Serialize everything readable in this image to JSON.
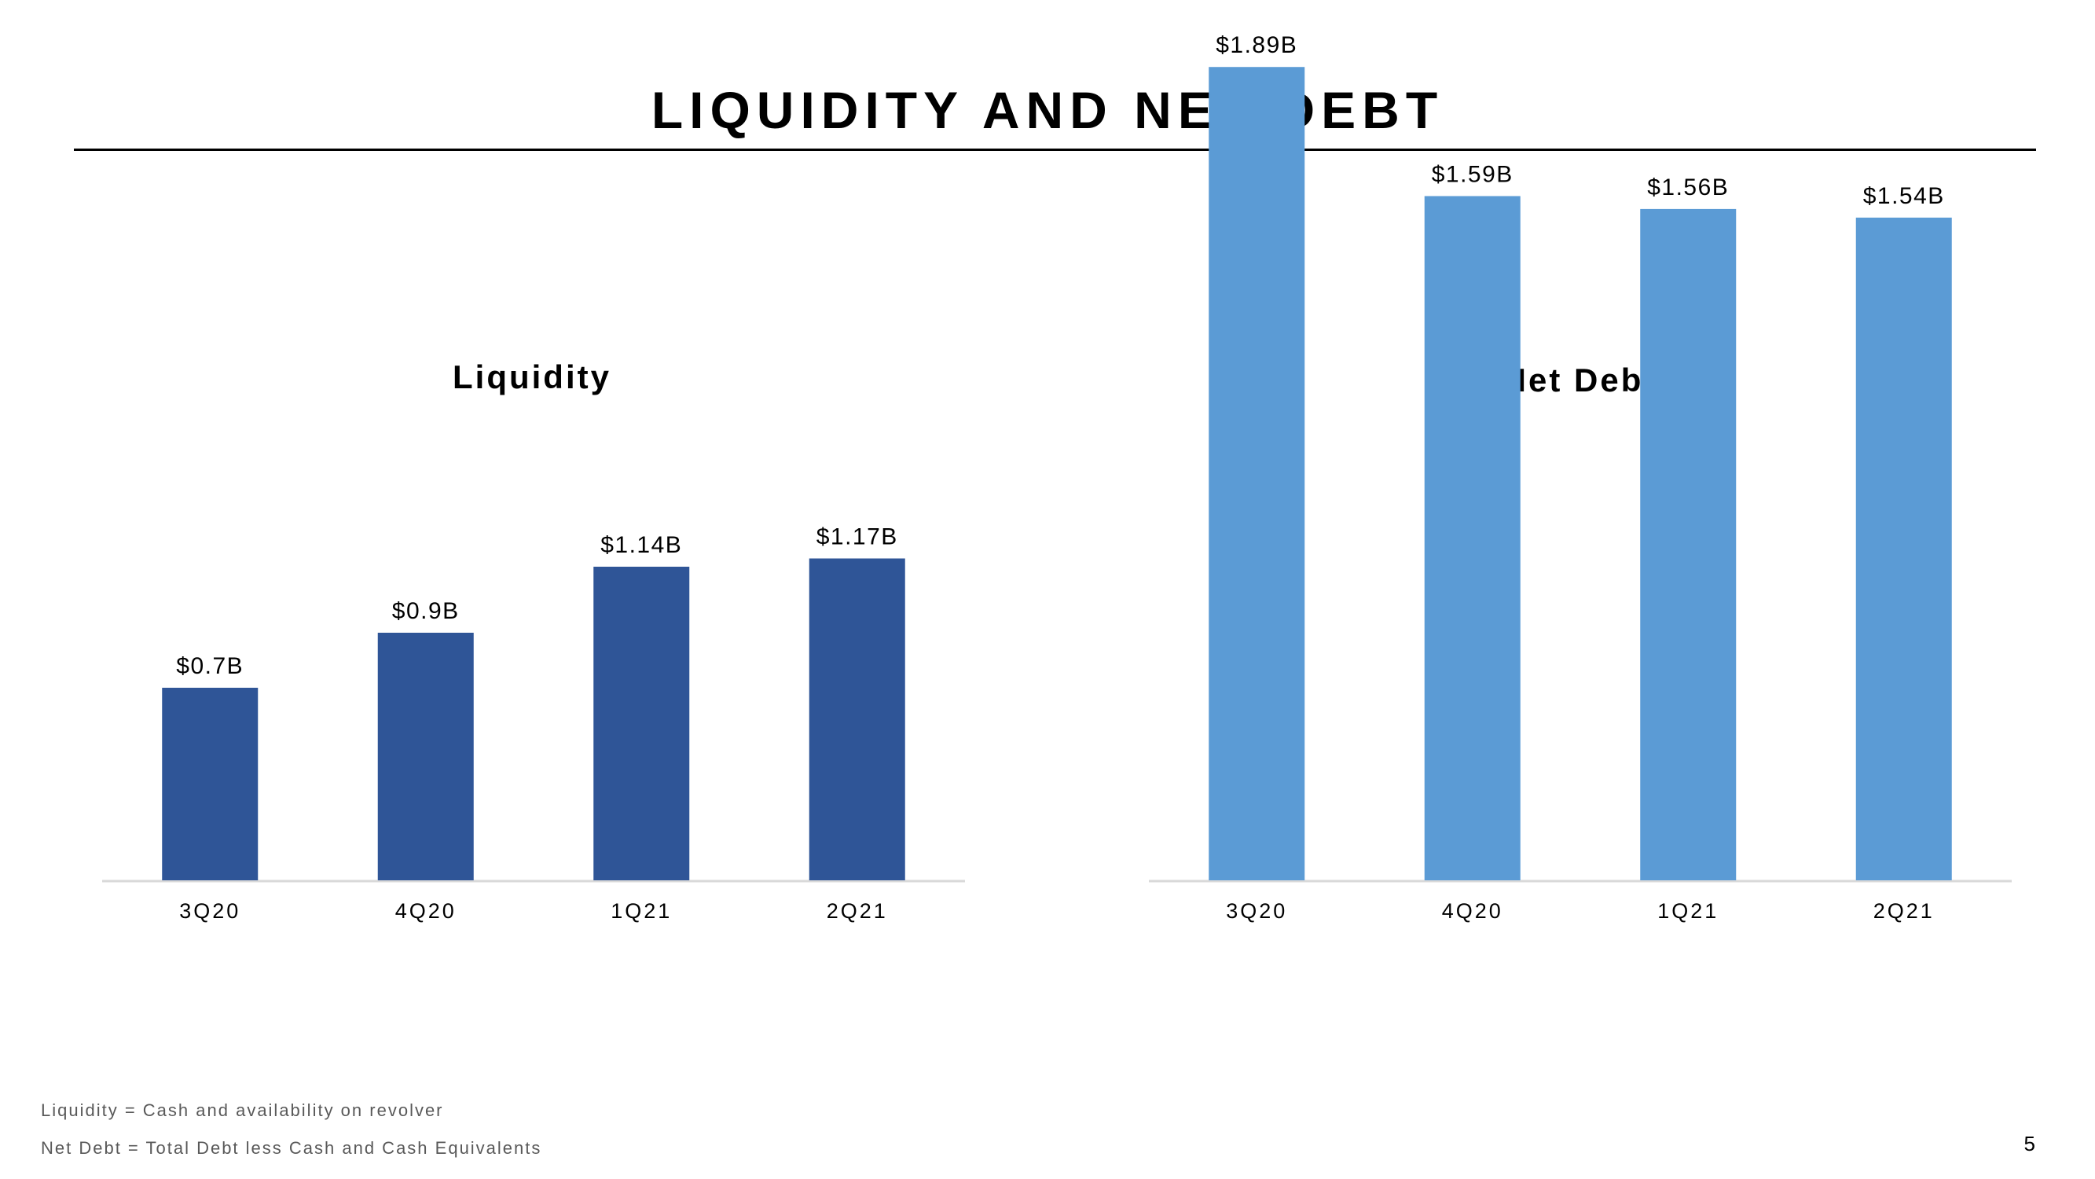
{
  "page": {
    "title": "LIQUIDITY AND NET DEBT",
    "page_number": "5"
  },
  "footnotes": {
    "liquidity": "Liquidity  =  Cash  and  availability  on  revolver",
    "net_debt": "Net  Debt  =  Total  Debt  less  Cash  and  Cash  Equivalents"
  },
  "chart_data": [
    {
      "type": "bar",
      "title": "Liquidity",
      "categories": [
        "3Q20",
        "4Q20",
        "1Q21",
        "2Q21"
      ],
      "values": [
        0.7,
        0.9,
        1.14,
        1.17
      ],
      "data_labels": [
        "$0.7B",
        "$0.9B",
        "$1.14B",
        "$1.17B"
      ],
      "unit": "$B",
      "ylim": [
        0,
        2.0
      ],
      "grid": false,
      "legend": "none",
      "color": "#2F5597"
    },
    {
      "type": "bar",
      "title": "Net Debt",
      "categories": [
        "3Q20",
        "4Q20",
        "1Q21",
        "2Q21"
      ],
      "values": [
        1.89,
        1.59,
        1.56,
        1.54
      ],
      "data_labels": [
        "$1.89B",
        "$1.59B",
        "$1.56B",
        "$1.54B"
      ],
      "unit": "$B",
      "ylim": [
        0,
        2.0
      ],
      "grid": false,
      "legend": "none",
      "color": "#5B9BD5"
    }
  ]
}
